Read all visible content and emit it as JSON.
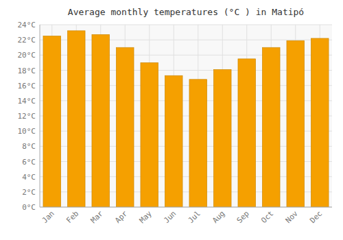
{
  "chart_data": {
    "type": "bar",
    "title": "Average monthly temperatures (°C ) in Matipó",
    "categories": [
      "Jan",
      "Feb",
      "Mar",
      "Apr",
      "May",
      "Jun",
      "Jul",
      "Aug",
      "Sep",
      "Oct",
      "Nov",
      "Dec"
    ],
    "values": [
      22.5,
      23.2,
      22.7,
      21.0,
      19.0,
      17.3,
      16.8,
      18.1,
      19.5,
      21.0,
      21.9,
      22.2
    ],
    "color": "#F5A000",
    "ylim": [
      0,
      24
    ],
    "yticks": [
      {
        "value": 0,
        "label": "0°C"
      },
      {
        "value": 2,
        "label": "2°C"
      },
      {
        "value": 4,
        "label": "4°C"
      },
      {
        "value": 6,
        "label": "6°C"
      },
      {
        "value": 8,
        "label": "8°C"
      },
      {
        "value": 10,
        "label": "10°C"
      },
      {
        "value": 12,
        "label": "12°C"
      },
      {
        "value": 14,
        "label": "14°C"
      },
      {
        "value": 16,
        "label": "16°C"
      },
      {
        "value": 18,
        "label": "18°C"
      },
      {
        "value": 20,
        "label": "20°C"
      },
      {
        "value": 22,
        "label": "22°C"
      },
      {
        "value": 24,
        "label": "24°C"
      }
    ],
    "grid": true
  }
}
